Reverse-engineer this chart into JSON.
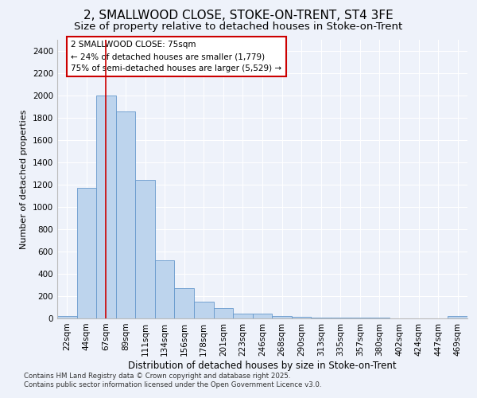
{
  "title": "2, SMALLWOOD CLOSE, STOKE-ON-TRENT, ST4 3FE",
  "subtitle": "Size of property relative to detached houses in Stoke-on-Trent",
  "xlabel": "Distribution of detached houses by size in Stoke-on-Trent",
  "ylabel": "Number of detached properties",
  "footer_line1": "Contains HM Land Registry data © Crown copyright and database right 2025.",
  "footer_line2": "Contains public sector information licensed under the Open Government Licence v3.0.",
  "bin_labels": [
    "22sqm",
    "44sqm",
    "67sqm",
    "89sqm",
    "111sqm",
    "134sqm",
    "156sqm",
    "178sqm",
    "201sqm",
    "223sqm",
    "246sqm",
    "268sqm",
    "290sqm",
    "313sqm",
    "335sqm",
    "357sqm",
    "380sqm",
    "402sqm",
    "424sqm",
    "447sqm",
    "469sqm"
  ],
  "bar_values": [
    25,
    1170,
    2000,
    1860,
    1245,
    520,
    275,
    150,
    90,
    45,
    42,
    22,
    15,
    10,
    8,
    5,
    4,
    3,
    2,
    2,
    20
  ],
  "bar_color": "#bdd4ed",
  "bar_edge_color": "#6699cc",
  "red_line_x": 2,
  "property_label": "2 SMALLWOOD CLOSE: 75sqm",
  "annotation_line1": "← 24% of detached houses are smaller (1,779)",
  "annotation_line2": "75% of semi-detached houses are larger (5,529) →",
  "annotation_box_color": "#ffffff",
  "annotation_box_edge": "#cc0000",
  "red_line_color": "#cc0000",
  "bg_color": "#eef2fa",
  "ylim": [
    0,
    2500
  ],
  "yticks": [
    0,
    200,
    400,
    600,
    800,
    1000,
    1200,
    1400,
    1600,
    1800,
    2000,
    2200,
    2400
  ],
  "grid_color": "#ffffff",
  "title_fontsize": 11,
  "subtitle_fontsize": 9.5
}
